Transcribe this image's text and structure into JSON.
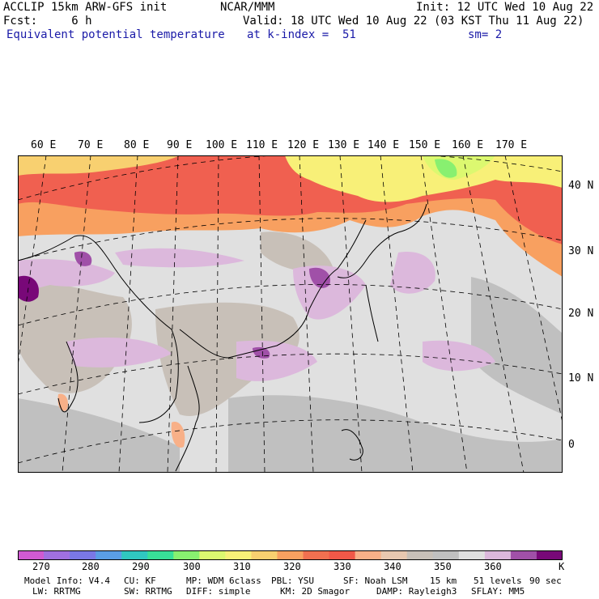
{
  "header": {
    "line1_left": "ACCLIP 15km ARW-GFS init",
    "line1_mid": "NCAR/MMM",
    "line1_right": "Init: 12 UTC Wed 10 Aug 22",
    "line2_left": "Fcst:     6 h",
    "line2_right": "Valid: 18 UTC Wed 10 Aug 22 (03 KST Thu 11 Aug 22)",
    "line3_left": "Equivalent potential temperature",
    "line3_mid": "at k-index =  51",
    "line3_right": "sm= 2"
  },
  "longitude_labels": [
    "60 E",
    "70 E",
    "80 E",
    "90 E",
    "100 E",
    "110 E",
    "120 E",
    "130 E",
    "140 E",
    "150 E",
    "160 E",
    "170 E"
  ],
  "latitude_labels": [
    "40 N",
    "30 N",
    "20 N",
    "10 N",
    "0"
  ],
  "colorbar": {
    "labels": [
      "270",
      "280",
      "290",
      "300",
      "310",
      "320",
      "330",
      "340",
      "350",
      "360"
    ],
    "unit": "K",
    "colors": [
      "#d05ad2",
      "#a070e0",
      "#7a78e6",
      "#5a9ee6",
      "#30c8c0",
      "#38e098",
      "#88f070",
      "#dcf870",
      "#f8f078",
      "#f8d070",
      "#f8a060",
      "#f07050",
      "#f05848",
      "#f8b088",
      "#e8c8b0",
      "#c8c0b8",
      "#c0c0c0",
      "#e0e0e0",
      "#dcb8dc",
      "#a050a8",
      "#780878"
    ]
  },
  "footer": {
    "row1": [
      "Model Info: V4.4",
      "CU: KF",
      "MP: WDM 6class",
      "PBL: YSU",
      "SF: Noah LSM",
      "15 km",
      "51 levels",
      "90 sec"
    ],
    "row2": [
      "LW: RRTMG",
      "SW: RRTMG",
      "DIFF: simple",
      "KM: 2D Smagor",
      "DAMP: Rayleigh3",
      "SFLAY: MM5"
    ]
  }
}
